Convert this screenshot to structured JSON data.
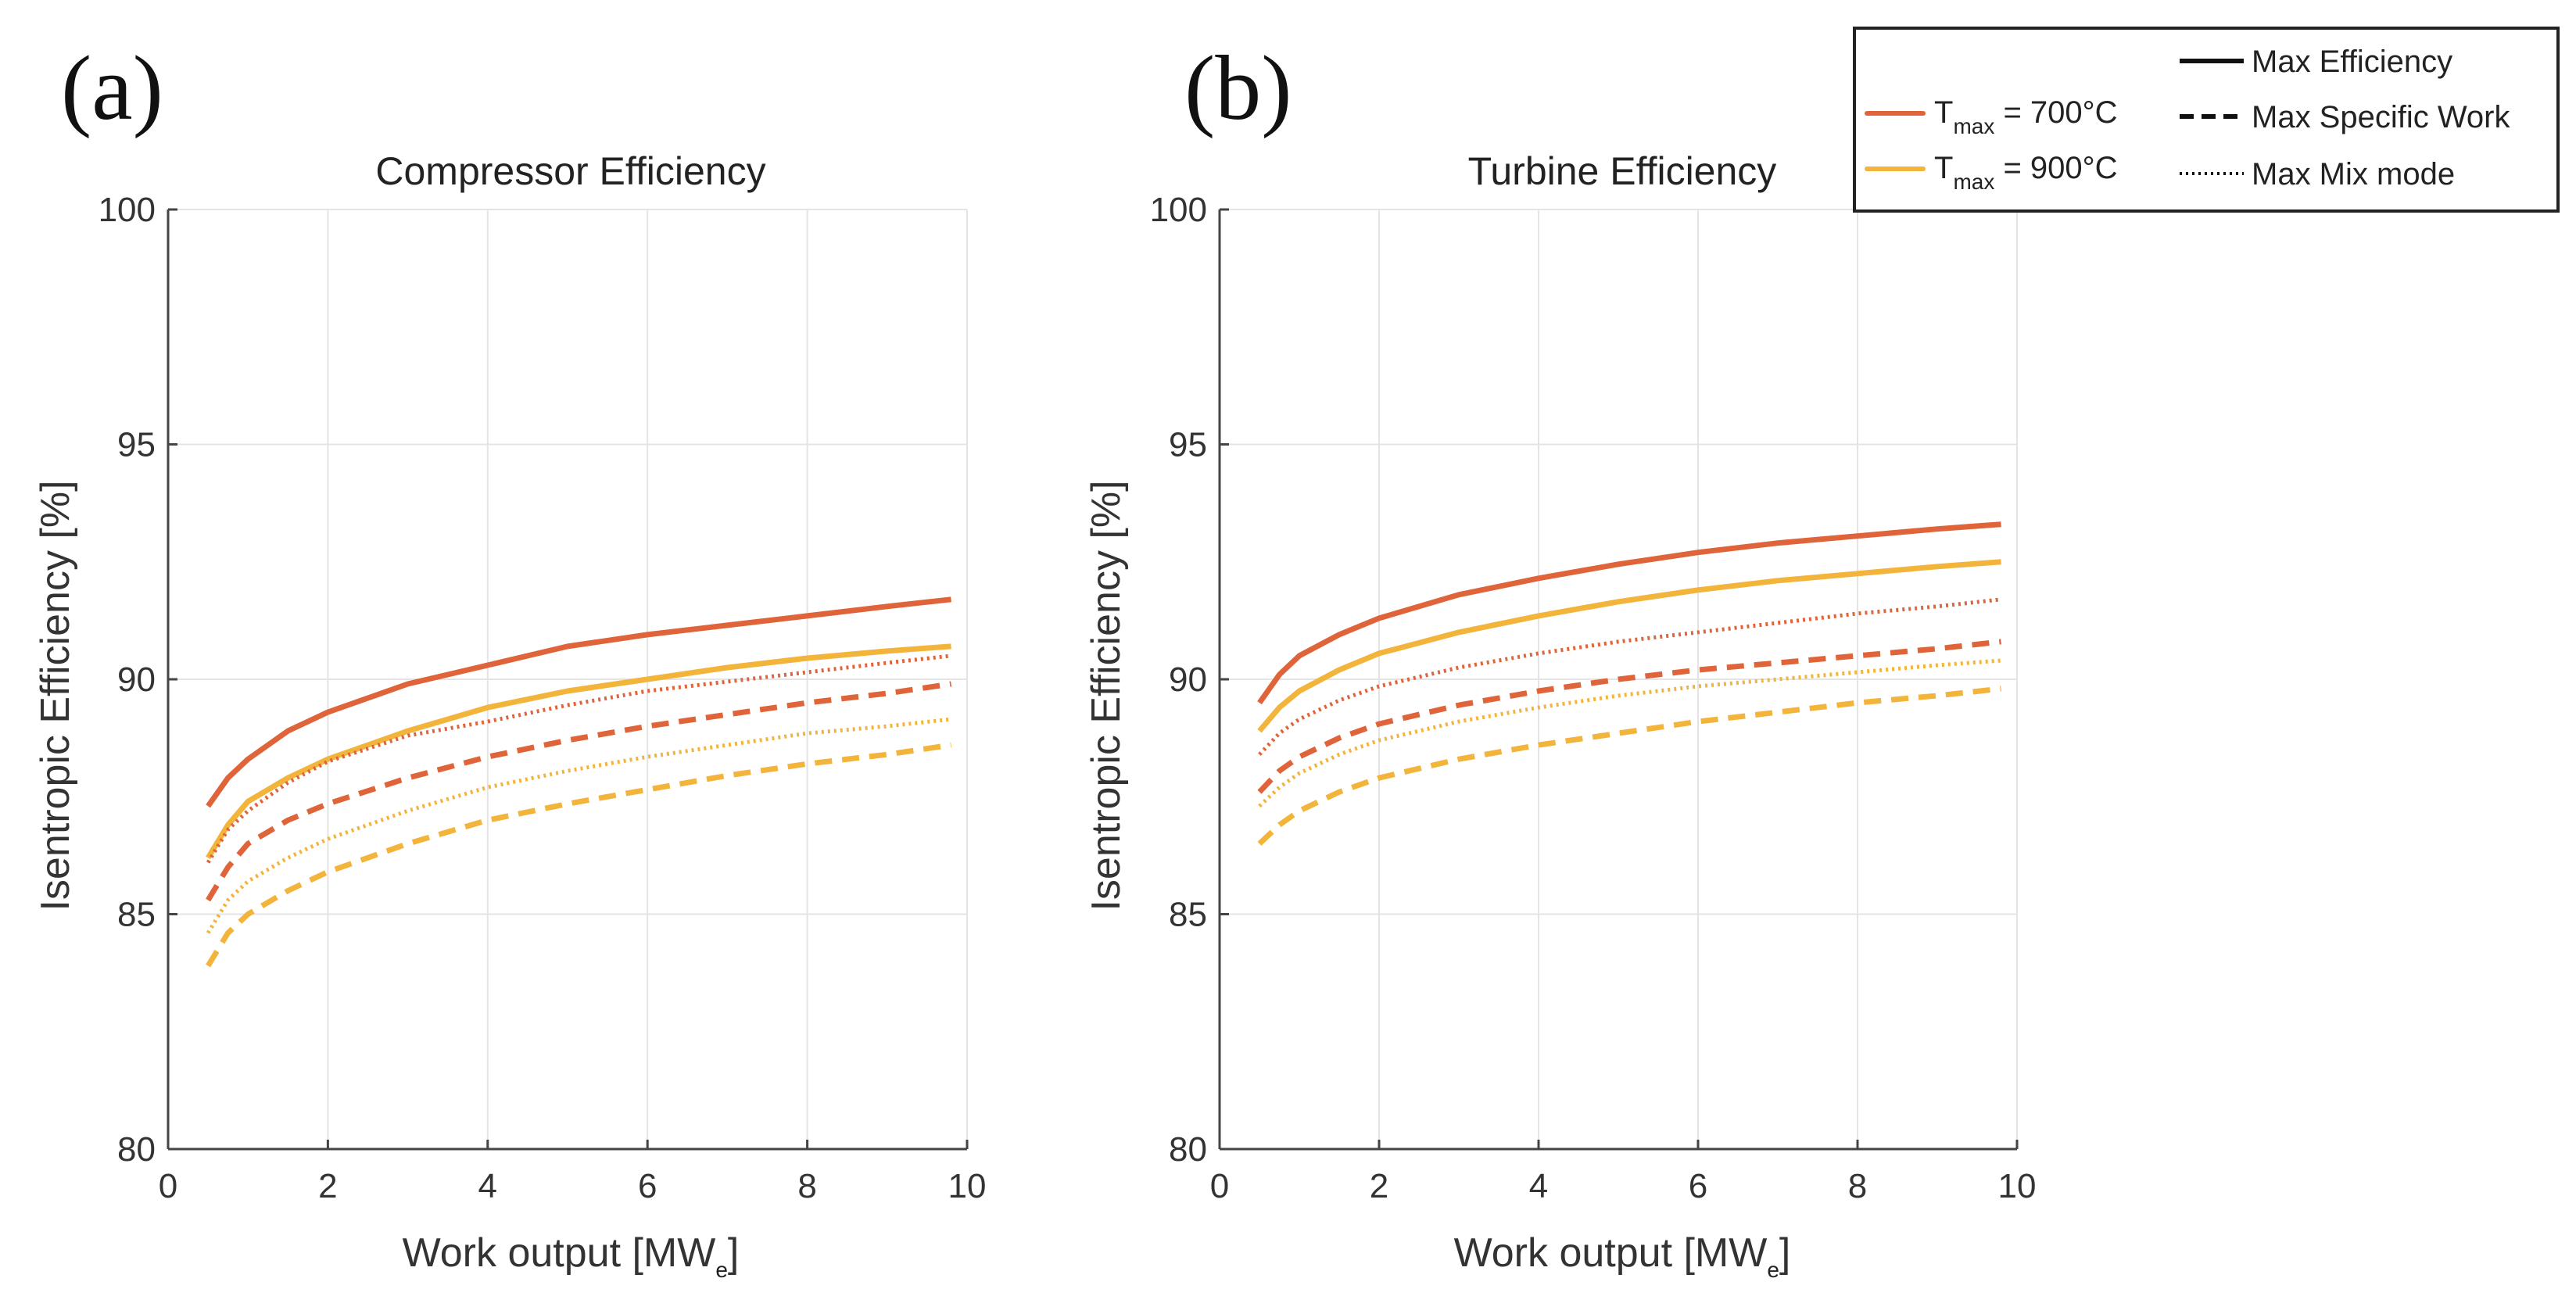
{
  "legend": {
    "series_entries": [
      {
        "var": "T",
        "sub": "max",
        "rest": " = 700°C",
        "color": "#e0643a"
      },
      {
        "var": "T",
        "sub": "max",
        "rest": " = 900°C",
        "color": "#f2b43a"
      }
    ],
    "style_entries": [
      {
        "label": "Max Efficiency",
        "style": "solid"
      },
      {
        "label": "Max Specific Work",
        "style": "dashed"
      },
      {
        "label": "Max Mix mode",
        "style": "dotted"
      }
    ]
  },
  "chart_data": [
    {
      "type": "line",
      "panel": "(a)",
      "title": "Compressor Efficiency",
      "xlabel": {
        "main": "Work output [MW",
        "sub": "e",
        "end": "]"
      },
      "ylabel": "Isentropic Efficiency [%]",
      "xlim": [
        0,
        10
      ],
      "ylim": [
        80,
        100
      ],
      "xticks": [
        0,
        2,
        4,
        6,
        8,
        10
      ],
      "yticks": [
        80,
        85,
        90,
        95,
        100
      ],
      "grid": true,
      "x": [
        0.5,
        0.75,
        1,
        1.5,
        2,
        3,
        4,
        5,
        6,
        7,
        8,
        9,
        9.8
      ],
      "series": [
        {
          "name": "Tmax = 700°C, Max Efficiency",
          "color": "#e0643a",
          "style": "solid",
          "values": [
            87.3,
            87.9,
            88.3,
            88.9,
            89.3,
            89.9,
            90.3,
            90.7,
            90.95,
            91.15,
            91.35,
            91.55,
            91.7
          ]
        },
        {
          "name": "Tmax = 900°C, Max Efficiency",
          "color": "#f2b43a",
          "style": "solid",
          "values": [
            86.2,
            86.9,
            87.4,
            87.9,
            88.3,
            88.9,
            89.4,
            89.75,
            90.0,
            90.25,
            90.45,
            90.6,
            90.7
          ]
        },
        {
          "name": "Tmax = 700°C, Max Mix mode",
          "color": "#e0643a",
          "style": "dotted",
          "values": [
            86.1,
            86.8,
            87.2,
            87.8,
            88.25,
            88.8,
            89.1,
            89.45,
            89.75,
            89.95,
            90.15,
            90.35,
            90.5
          ]
        },
        {
          "name": "Tmax = 700°C, Max Specific Work",
          "color": "#e0643a",
          "style": "dashed",
          "values": [
            85.3,
            86.0,
            86.5,
            87.0,
            87.35,
            87.9,
            88.35,
            88.7,
            89.0,
            89.25,
            89.5,
            89.7,
            89.9
          ]
        },
        {
          "name": "Tmax = 900°C, Max Mix mode",
          "color": "#f2b43a",
          "style": "dotted",
          "values": [
            84.6,
            85.3,
            85.7,
            86.2,
            86.6,
            87.2,
            87.7,
            88.05,
            88.35,
            88.6,
            88.85,
            89.0,
            89.15
          ]
        },
        {
          "name": "Tmax = 900°C, Max Specific Work",
          "color": "#f2b43a",
          "style": "dashed",
          "values": [
            83.9,
            84.6,
            85.0,
            85.5,
            85.9,
            86.5,
            87.0,
            87.35,
            87.65,
            87.95,
            88.2,
            88.4,
            88.6
          ]
        }
      ]
    },
    {
      "type": "line",
      "panel": "(b)",
      "title": "Turbine Efficiency",
      "xlabel": {
        "main": "Work output [MW",
        "sub": "e",
        "end": "]"
      },
      "ylabel": "Isentropic Efficiency [%]",
      "xlim": [
        0,
        10
      ],
      "ylim": [
        80,
        100
      ],
      "xticks": [
        0,
        2,
        4,
        6,
        8,
        10
      ],
      "yticks": [
        80,
        85,
        90,
        95,
        100
      ],
      "grid": true,
      "x": [
        0.5,
        0.75,
        1,
        1.5,
        2,
        3,
        4,
        5,
        6,
        7,
        8,
        9,
        9.8
      ],
      "series": [
        {
          "name": "Tmax = 700°C, Max Efficiency",
          "color": "#e0643a",
          "style": "solid",
          "values": [
            89.5,
            90.1,
            90.5,
            90.95,
            91.3,
            91.8,
            92.15,
            92.45,
            92.7,
            92.9,
            93.05,
            93.2,
            93.3
          ]
        },
        {
          "name": "Tmax = 900°C, Max Efficiency",
          "color": "#f2b43a",
          "style": "solid",
          "values": [
            88.9,
            89.4,
            89.75,
            90.2,
            90.55,
            91.0,
            91.35,
            91.65,
            91.9,
            92.1,
            92.25,
            92.4,
            92.5
          ]
        },
        {
          "name": "Tmax = 700°C, Max Mix mode",
          "color": "#e0643a",
          "style": "dotted",
          "values": [
            88.4,
            88.85,
            89.15,
            89.55,
            89.85,
            90.25,
            90.55,
            90.8,
            91.0,
            91.2,
            91.4,
            91.55,
            91.7
          ]
        },
        {
          "name": "Tmax = 700°C, Max Specific Work",
          "color": "#e0643a",
          "style": "dashed",
          "values": [
            87.6,
            88.05,
            88.35,
            88.75,
            89.05,
            89.45,
            89.75,
            90.0,
            90.2,
            90.35,
            90.5,
            90.65,
            90.8
          ]
        },
        {
          "name": "Tmax = 900°C, Max Mix mode",
          "color": "#f2b43a",
          "style": "dotted",
          "values": [
            87.3,
            87.7,
            88.0,
            88.4,
            88.7,
            89.1,
            89.4,
            89.65,
            89.85,
            90.0,
            90.15,
            90.3,
            90.4
          ]
        },
        {
          "name": "Tmax = 900°C, Max Specific Work",
          "color": "#f2b43a",
          "style": "dashed",
          "values": [
            86.5,
            86.9,
            87.2,
            87.6,
            87.9,
            88.3,
            88.6,
            88.85,
            89.1,
            89.3,
            89.5,
            89.65,
            89.8
          ]
        }
      ]
    }
  ]
}
